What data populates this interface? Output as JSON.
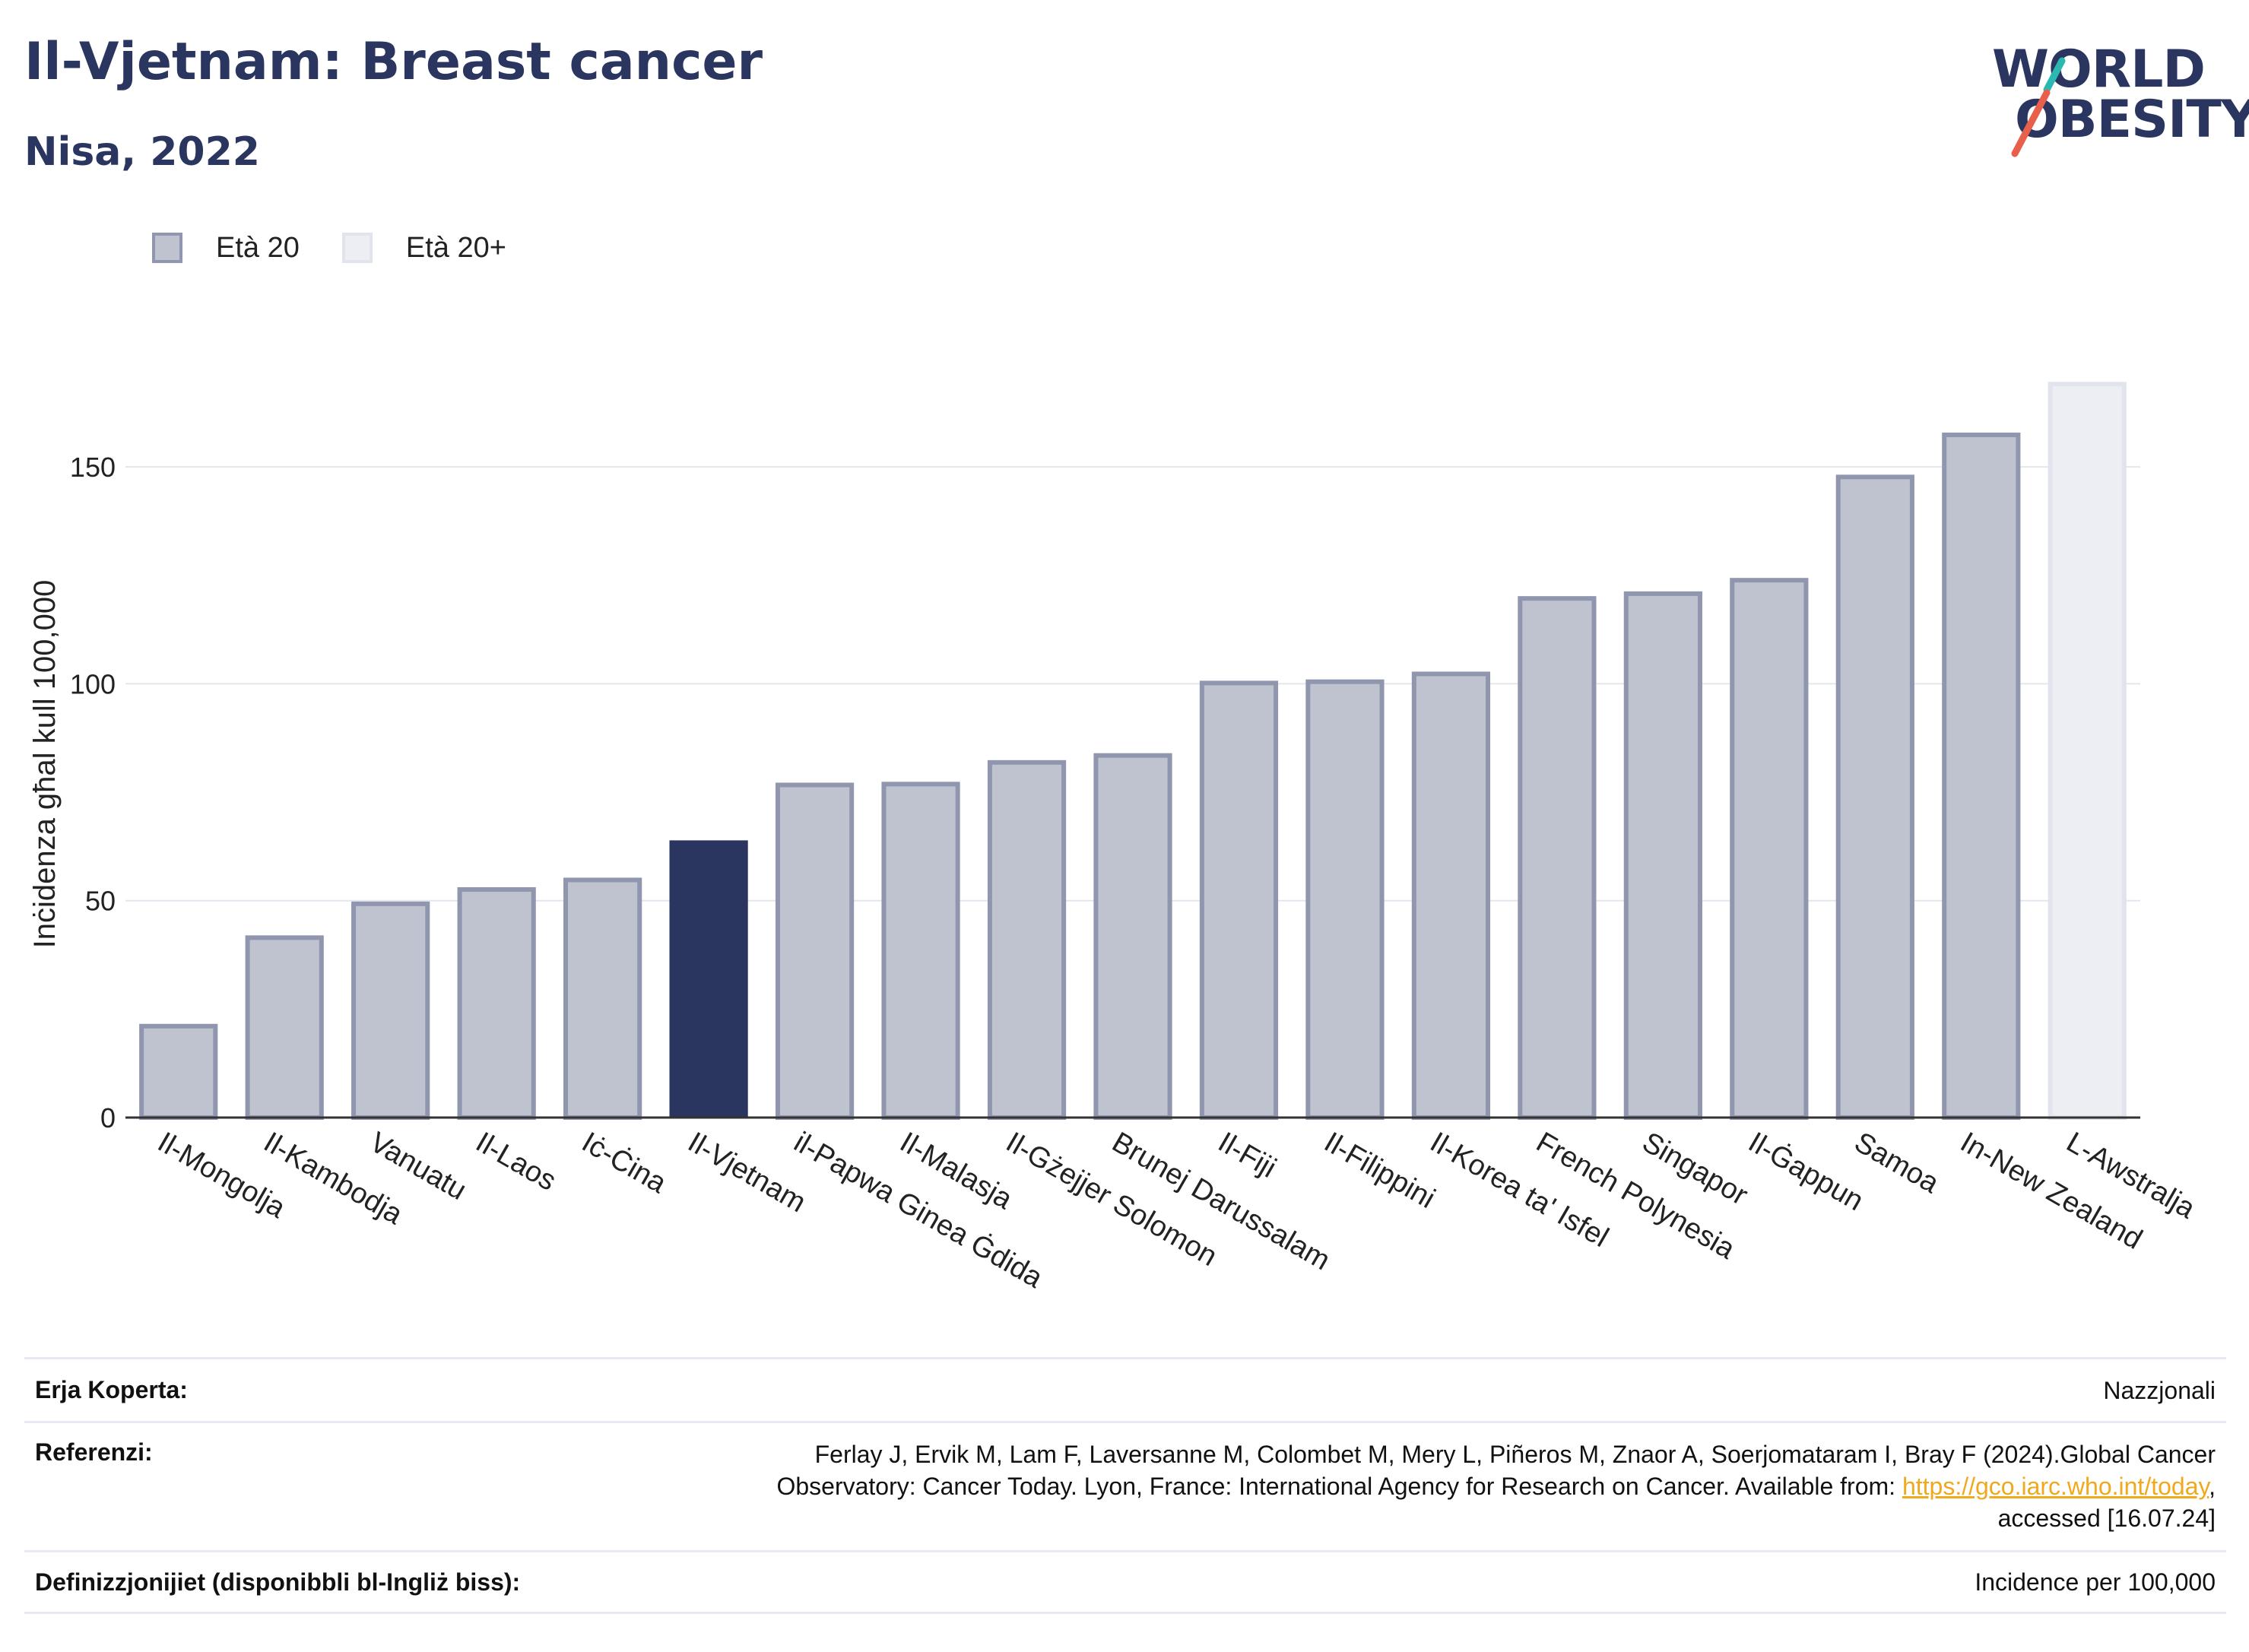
{
  "header": {
    "title": "Il-Vjetnam: Breast cancer",
    "subtitle": "Nisa, 2022"
  },
  "logo": {
    "line1": "WORLD",
    "line2": "OBESITY",
    "accent_teal": "#2bb8b0",
    "accent_red": "#e8604c"
  },
  "legend": [
    {
      "label": "Età 20",
      "fill": "#bfc3d0",
      "stroke": "#8f96ae"
    },
    {
      "label": "Età 20+",
      "fill": "#eceef3",
      "stroke": "#e1e4ec"
    }
  ],
  "colors": {
    "bar_fill": "#bfc3d0",
    "bar_stroke": "#8f96ae",
    "highlight": "#2a3560",
    "last_fill": "#eceef3",
    "last_stroke": "#e1e4ec",
    "grid": "#e4e6ee"
  },
  "chart_data": {
    "type": "bar",
    "title": "Il-Vjetnam: Breast cancer",
    "subtitle": "Nisa, 2022",
    "ylabel": "Inċidenza għal kull 100,000",
    "ylim": [
      0,
      170
    ],
    "yticks": [
      0,
      50,
      100,
      150
    ],
    "grid": true,
    "legend_position": "top-left",
    "highlight_index": 5,
    "categories": [
      "Il-Mongolja",
      "Il-Kambodja",
      "Vanuatu",
      "Il-Laos",
      "Iċ-Ċina",
      "Il-Vjetnam",
      "il-Papwa Ginea Ġdida",
      "Il-Malasja",
      "Il-Gżejjer Solomon",
      "Brunej Darussalam",
      "Il-Fiji",
      "Il-Filippini",
      "Il-Korea ta' Isfel",
      "French Polynesia",
      "Singapor",
      "Il-Ġappun",
      "Samoa",
      "In-New Zealand",
      "L-Awstralja"
    ],
    "values": [
      21.6,
      42.0,
      49.8,
      53.1,
      55.3,
      63.9,
      77.2,
      77.4,
      82.4,
      84.0,
      100.7,
      101.0,
      102.8,
      120.2,
      121.3,
      124.4,
      148.2,
      157.9,
      169.6
    ],
    "series_label_map": [
      "Età 20",
      "Età 20",
      "Età 20",
      "Età 20",
      "Età 20",
      "Età 20",
      "Età 20",
      "Età 20",
      "Età 20",
      "Età 20",
      "Età 20",
      "Età 20",
      "Età 20",
      "Età 20",
      "Età 20",
      "Età 20",
      "Età 20",
      "Età 20",
      "Età 20+"
    ]
  },
  "footer": {
    "coverage_label": "Erja Koperta:",
    "coverage_value": "Nazzjonali",
    "references_label": "Referenzi:",
    "references_text_1": "Ferlay J, Ervik M, Lam F, Laversanne M, Colombet M, Mery L, Piñeros M, Znaor A, Soerjomataram I, Bray F (2024).Global Cancer",
    "references_text_2": "Observatory: Cancer Today. Lyon, France: International Agency for Research on Cancer. Available from: ",
    "references_link": "https://gco.iarc.who.int/today",
    "references_text_3": ",",
    "references_text_4": "accessed [16.07.24]",
    "definitions_label": "Definizzjonijiet (disponibbli bl-Ingliż biss):",
    "definitions_value": "Incidence per 100,000"
  }
}
